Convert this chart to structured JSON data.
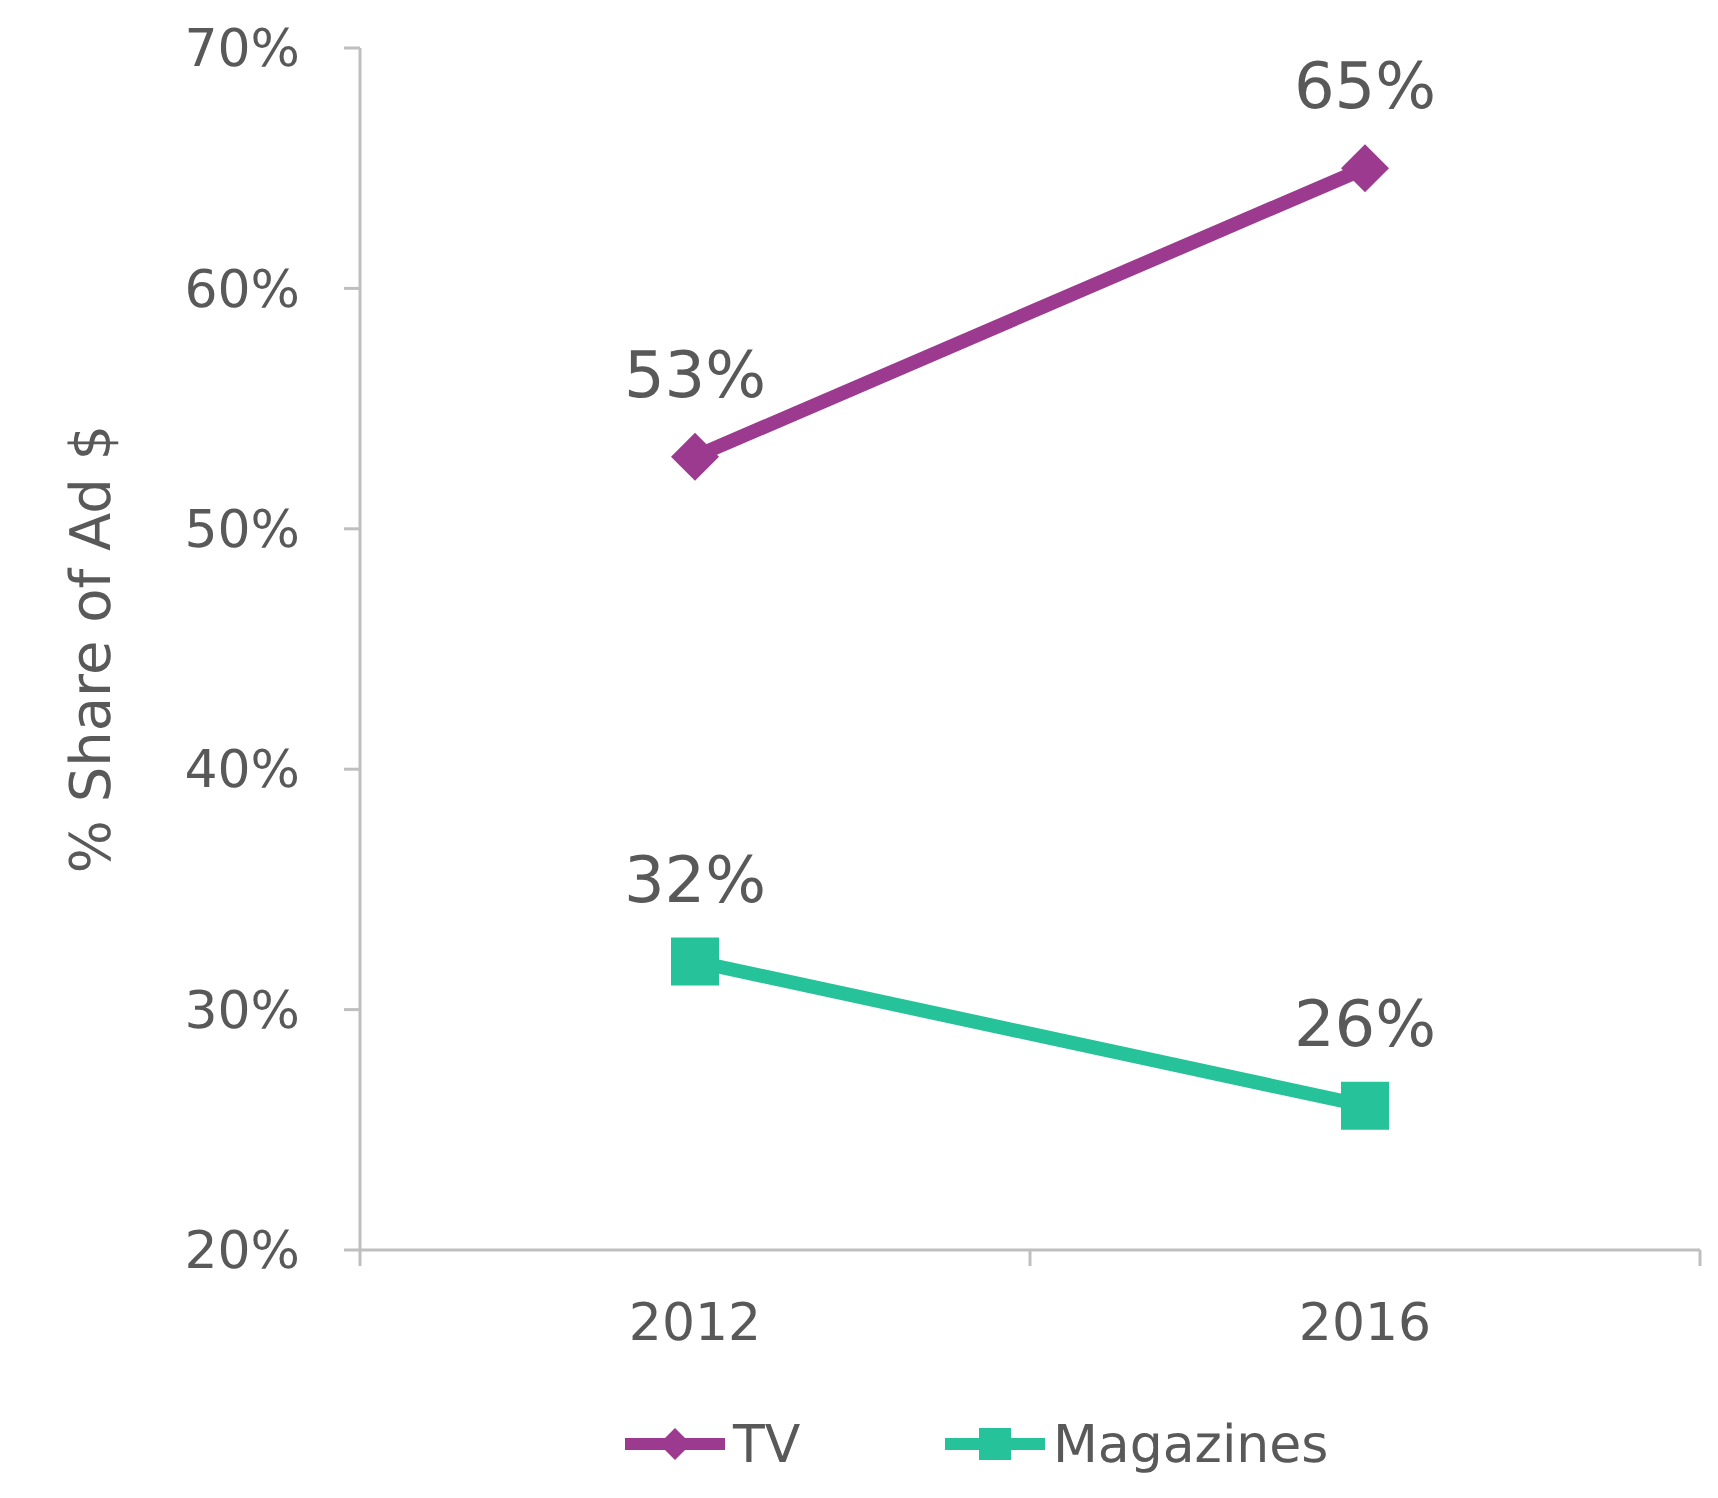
{
  "chart_data": {
    "type": "line",
    "ylabel": "% Share of  Ad $",
    "categories": [
      "2012",
      "2016"
    ],
    "series": [
      {
        "name": "TV",
        "color": "#9b3a8e",
        "marker": "diamond",
        "values": [
          53,
          65
        ],
        "value_labels": [
          "53%",
          "65%"
        ]
      },
      {
        "name": "Magazines",
        "color": "#26c29a",
        "marker": "square",
        "values": [
          32,
          26
        ],
        "value_labels": [
          "32%",
          "26%"
        ]
      }
    ],
    "ylim": [
      20,
      70
    ],
    "yticks": [
      {
        "value": 20,
        "label": "20%"
      },
      {
        "value": 30,
        "label": "30%"
      },
      {
        "value": 40,
        "label": "40%"
      },
      {
        "value": 50,
        "label": "50%"
      },
      {
        "value": 60,
        "label": "60%"
      },
      {
        "value": 70,
        "label": "70%"
      }
    ],
    "grid": false,
    "legend": "bottom"
  }
}
